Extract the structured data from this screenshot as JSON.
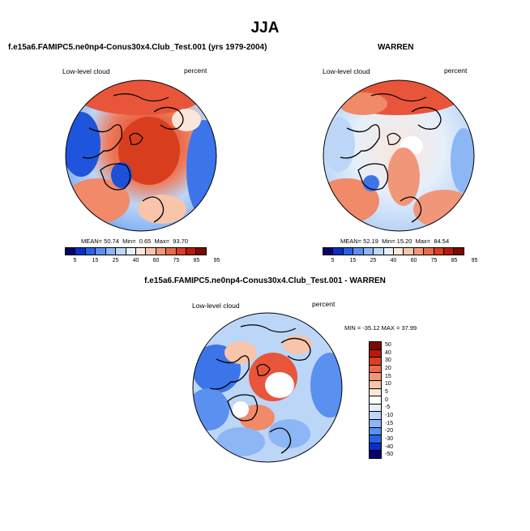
{
  "chart_data": {
    "type": "heatmap",
    "title": "JJA",
    "panels": [
      {
        "id": "model",
        "title": "f.e15a6.FAMIPC5.ne0np4-Conus30x4.Club_Test.001 (yrs 1979-2004)",
        "left_label": "Low-level cloud",
        "right_label": "percent",
        "stats": {
          "mean_label": "MEAN=",
          "mean": "50.74",
          "min_label": "Min=",
          "min": "0.65",
          "max_label": "Max=",
          "max": "93.70"
        },
        "colorbar_ticks": [
          "5",
          "15",
          "25",
          "40",
          "60",
          "75",
          "85",
          "95"
        ]
      },
      {
        "id": "obs",
        "title": "WARREN",
        "left_label": "Low-level cloud",
        "right_label": "percent",
        "stats": {
          "mean_label": "MEAN=",
          "mean": "52.19",
          "min_label": "Min=",
          "min": "15.20",
          "max_label": "Max=",
          "max": "84.54"
        },
        "colorbar_ticks": [
          "5",
          "15",
          "25",
          "40",
          "60",
          "75",
          "85",
          "95"
        ]
      },
      {
        "id": "diff",
        "title": "f.e15a6.FAMIPC5.ne0np4-Conus30x4.Club_Test.001 - WARREN",
        "left_label": "Low-level cloud",
        "right_label": "percent",
        "minmax_text": "MIN = -35.12  MAX =  37.99",
        "colorbar_ticks": [
          "50",
          "40",
          "30",
          "20",
          "15",
          "10",
          "5",
          "0",
          "-5",
          "-10",
          "-15",
          "-20",
          "-30",
          "-40",
          "-50"
        ]
      }
    ],
    "levels_colorbar": {
      "colors": [
        "#08006b",
        "#0a2ec8",
        "#2a62e6",
        "#5a90f0",
        "#8cb6f4",
        "#bcd6f8",
        "#e6effa",
        "#fbe6da",
        "#f8c4aa",
        "#f2967a",
        "#ea6a4a",
        "#dc3e20",
        "#b71a08",
        "#7a0a00"
      ]
    },
    "diff_colorbar": {
      "colors": [
        "#7a0a00",
        "#b71a08",
        "#dc3e20",
        "#ea6a4a",
        "#f2967a",
        "#f8c4aa",
        "#fbe6da",
        "#ffffff",
        "#e6effa",
        "#bcd6f8",
        "#8cb6f4",
        "#5a90f0",
        "#2a62e6",
        "#0a2ec8",
        "#08006b"
      ]
    }
  }
}
